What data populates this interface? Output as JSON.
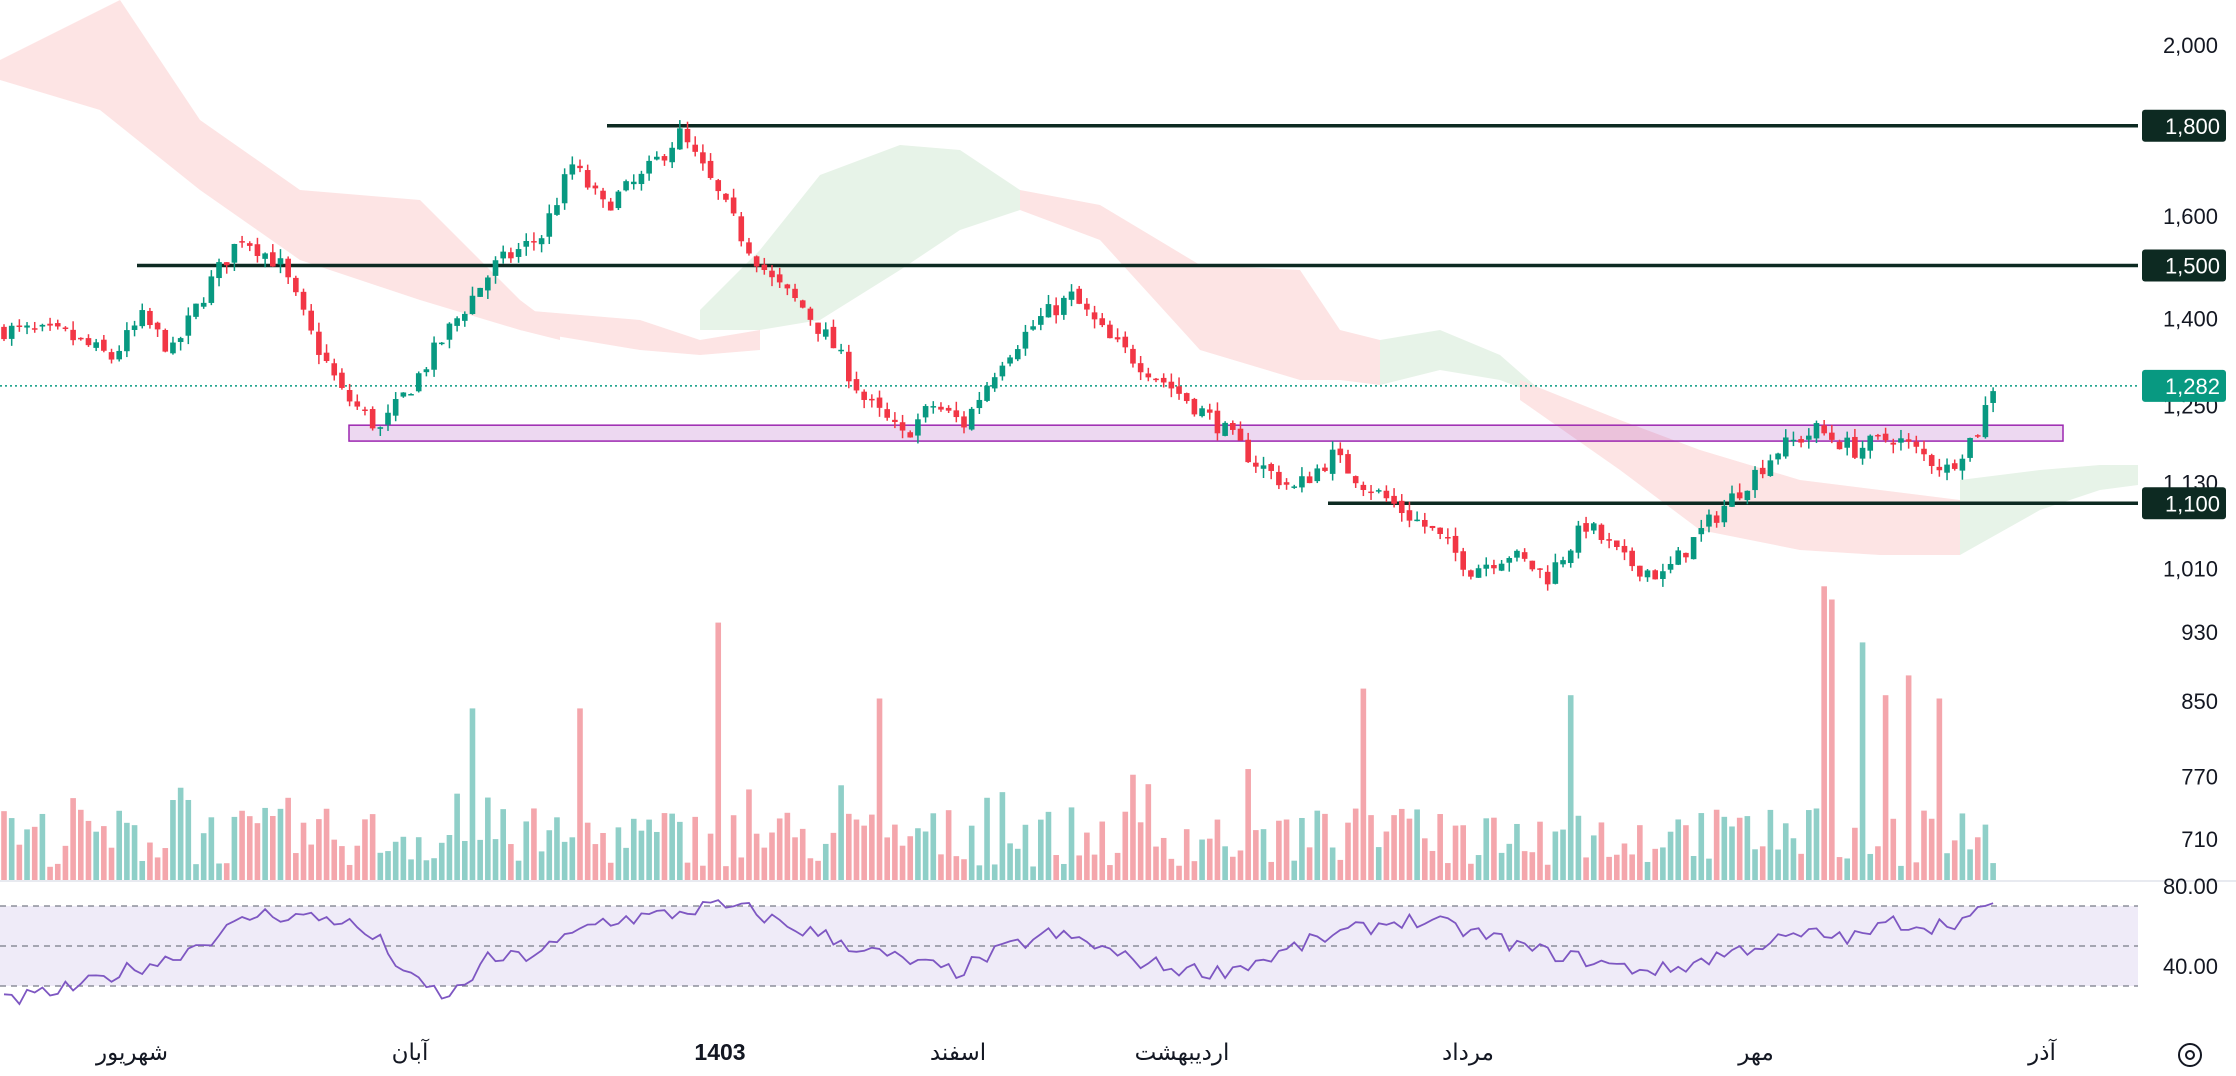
{
  "chart_data": {
    "type": "candlestick",
    "price_axis": {
      "ticks": [
        "2,000",
        "1,600",
        "1,400",
        "1,250",
        "1,130",
        "1,010",
        "930",
        "850",
        "770",
        "710"
      ],
      "scale": "log"
    },
    "horizontal_levels": [
      {
        "price": 1800,
        "label": "1,800"
      },
      {
        "price": 1500,
        "label": "1,500"
      },
      {
        "price": 1100,
        "label": "1,100"
      }
    ],
    "current_price": {
      "price": 1282,
      "label": "1,282",
      "color": "#089981"
    },
    "support_zone": {
      "from": 1193,
      "to": 1218,
      "color": "#9c27b0"
    },
    "rsi": {
      "ticks": [
        "80.00",
        "40.00"
      ],
      "band": [
        30,
        70
      ],
      "middle": 50,
      "color": "#7e57c2"
    },
    "time_axis": {
      "labels": [
        "شهریور",
        "آبان",
        "1403",
        "اسفند",
        "اردیبهشت",
        "مرداد",
        "مهر",
        "آذر"
      ],
      "bold_label": "1403"
    },
    "colors": {
      "up": "#089981",
      "down": "#f23645",
      "up_volume": "#8fcfc8",
      "down_volume": "#f4a6ac",
      "cloud_bull": "#e7f3e8",
      "cloud_bear": "#fde4e4",
      "level_line": "#0d2a22"
    },
    "series_anchors": [
      [
        0,
        1380
      ],
      [
        8,
        1370
      ],
      [
        14,
        1330
      ],
      [
        18,
        1400
      ],
      [
        22,
        1340
      ],
      [
        27,
        1470
      ],
      [
        31,
        1560
      ],
      [
        36,
        1500
      ],
      [
        40,
        1370
      ],
      [
        44,
        1270
      ],
      [
        49,
        1210
      ],
      [
        54,
        1300
      ],
      [
        59,
        1400
      ],
      [
        64,
        1500
      ],
      [
        70,
        1560
      ],
      [
        74,
        1710
      ],
      [
        78,
        1620
      ],
      [
        83,
        1680
      ],
      [
        88,
        1780
      ],
      [
        91,
        1700
      ],
      [
        96,
        1560
      ],
      [
        100,
        1470
      ],
      [
        104,
        1420
      ],
      [
        108,
        1350
      ],
      [
        112,
        1260
      ],
      [
        117,
        1200
      ],
      [
        121,
        1250
      ],
      [
        125,
        1220
      ],
      [
        130,
        1330
      ],
      [
        135,
        1400
      ],
      [
        139,
        1440
      ],
      [
        144,
        1360
      ],
      [
        149,
        1310
      ],
      [
        154,
        1260
      ],
      [
        158,
        1220
      ],
      [
        163,
        1160
      ],
      [
        168,
        1120
      ],
      [
        173,
        1170
      ],
      [
        177,
        1130
      ],
      [
        182,
        1090
      ],
      [
        186,
        1060
      ],
      [
        191,
        1010
      ],
      [
        196,
        1030
      ],
      [
        201,
        1000
      ],
      [
        206,
        1070
      ],
      [
        211,
        1020
      ],
      [
        216,
        1000
      ],
      [
        221,
        1060
      ],
      [
        226,
        1120
      ],
      [
        231,
        1180
      ],
      [
        236,
        1210
      ],
      [
        241,
        1180
      ],
      [
        246,
        1200
      ],
      [
        250,
        1170
      ],
      [
        253,
        1150
      ],
      [
        257,
        1210
      ],
      [
        259,
        1282
      ]
    ],
    "rsi_anchors": [
      [
        0,
        22
      ],
      [
        10,
        30
      ],
      [
        16,
        38
      ],
      [
        21,
        43
      ],
      [
        27,
        54
      ],
      [
        33,
        66
      ],
      [
        38,
        65
      ],
      [
        44,
        63
      ],
      [
        49,
        52
      ],
      [
        53,
        33
      ],
      [
        58,
        24
      ],
      [
        63,
        43
      ],
      [
        68,
        45
      ],
      [
        72,
        51
      ],
      [
        77,
        62
      ],
      [
        82,
        64
      ],
      [
        87,
        66
      ],
      [
        92,
        70
      ],
      [
        97,
        68
      ],
      [
        102,
        60
      ],
      [
        107,
        55
      ],
      [
        112,
        48
      ],
      [
        118,
        42
      ],
      [
        124,
        37
      ],
      [
        130,
        48
      ],
      [
        136,
        56
      ],
      [
        141,
        52
      ],
      [
        146,
        44
      ],
      [
        152,
        39
      ],
      [
        158,
        37
      ],
      [
        164,
        43
      ],
      [
        170,
        52
      ],
      [
        176,
        58
      ],
      [
        182,
        63
      ],
      [
        187,
        61
      ],
      [
        193,
        55
      ],
      [
        199,
        48
      ],
      [
        205,
        44
      ],
      [
        211,
        39
      ],
      [
        217,
        38
      ],
      [
        223,
        45
      ],
      [
        229,
        51
      ],
      [
        235,
        56
      ],
      [
        241,
        54
      ],
      [
        246,
        62
      ],
      [
        251,
        60
      ],
      [
        256,
        64
      ],
      [
        259,
        70
      ]
    ],
    "volume_spikes": [
      [
        61,
        0.52
      ],
      [
        75,
        0.52
      ],
      [
        93,
        0.78
      ],
      [
        114,
        0.55
      ],
      [
        177,
        0.58
      ],
      [
        204,
        0.56
      ],
      [
        237,
        0.89
      ],
      [
        238,
        0.85
      ],
      [
        242,
        0.72
      ],
      [
        245,
        0.56
      ],
      [
        248,
        0.62
      ],
      [
        252,
        0.55
      ]
    ]
  }
}
